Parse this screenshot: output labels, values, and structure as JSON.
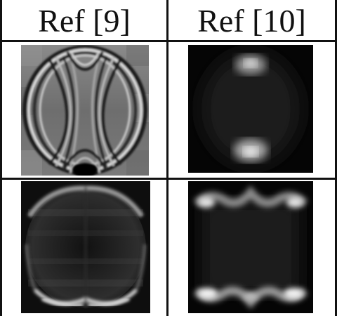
{
  "figure": {
    "headers": [
      "Ref [9]",
      "Ref [10]"
    ],
    "panels": [
      {
        "row": 1,
        "column": "Ref [9]",
        "content": "grayscale-image"
      },
      {
        "row": 1,
        "column": "Ref [10]",
        "content": "grayscale-image"
      },
      {
        "row": 2,
        "column": "Ref [9]",
        "content": "grayscale-image"
      },
      {
        "row": 2,
        "column": "Ref [10]",
        "content": "grayscale-image"
      }
    ],
    "colors": {
      "border": "#111111",
      "background": "#ffffff",
      "panel_bg": "#000000"
    }
  }
}
